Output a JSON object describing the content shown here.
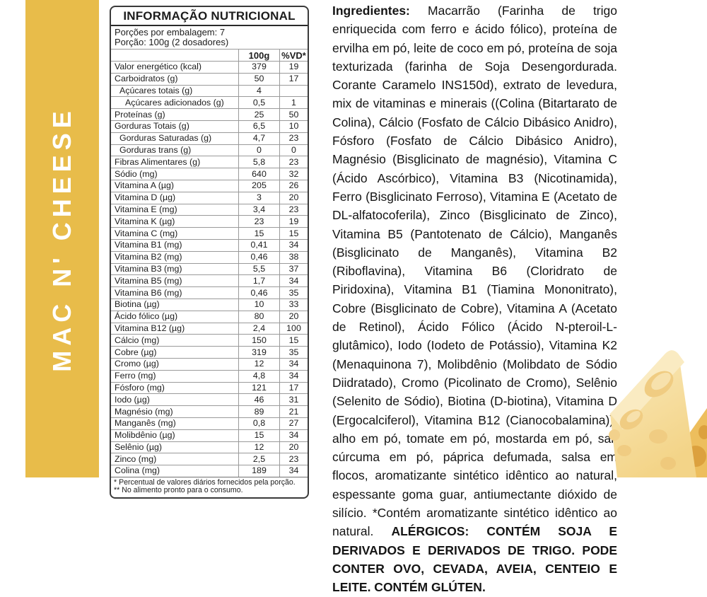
{
  "brand": {
    "title": "MAC N' CHEESE",
    "band_color": "#E8BC4A",
    "text_color": "#FFFFFF"
  },
  "nutrition_table": {
    "title": "INFORMAÇÃO NUTRICIONAL",
    "servings_per_package": "Porções por embalagem: 7",
    "serving_size": "Porção: 100g (2 dosadores)",
    "col_headers": [
      "100g",
      "%VD*"
    ],
    "rows": [
      {
        "label": "Valor energético (kcal)",
        "indent": 0,
        "per100g": "379",
        "vd": "19"
      },
      {
        "label": "Carboidratos (g)",
        "indent": 0,
        "per100g": "50",
        "vd": "17"
      },
      {
        "label": "Açúcares totais (g)",
        "indent": 1,
        "per100g": "4",
        "vd": ""
      },
      {
        "label": "Açúcares adicionados (g)",
        "indent": 2,
        "per100g": "0,5",
        "vd": "1"
      },
      {
        "label": "Proteínas (g)",
        "indent": 0,
        "per100g": "25",
        "vd": "50"
      },
      {
        "label": "Gorduras Totais (g)",
        "indent": 0,
        "per100g": "6,5",
        "vd": "10"
      },
      {
        "label": "Gorduras Saturadas (g)",
        "indent": 1,
        "per100g": "4,7",
        "vd": "23"
      },
      {
        "label": "Gorduras trans (g)",
        "indent": 1,
        "per100g": "0",
        "vd": "0"
      },
      {
        "label": "Fibras Alimentares (g)",
        "indent": 0,
        "per100g": "5,8",
        "vd": "23"
      },
      {
        "label": "Sódio (mg)",
        "indent": 0,
        "per100g": "640",
        "vd": "32"
      },
      {
        "label": "Vitamina A (µg)",
        "indent": 0,
        "per100g": "205",
        "vd": "26"
      },
      {
        "label": "Vitamina D (µg)",
        "indent": 0,
        "per100g": "3",
        "vd": "20"
      },
      {
        "label": "Vitamina E (mg)",
        "indent": 0,
        "per100g": "3,4",
        "vd": "23"
      },
      {
        "label": "Vitamina K (µg)",
        "indent": 0,
        "per100g": "23",
        "vd": "19"
      },
      {
        "label": "Vitamina C (mg)",
        "indent": 0,
        "per100g": "15",
        "vd": "15"
      },
      {
        "label": "Vitamina B1 (mg)",
        "indent": 0,
        "per100g": "0,41",
        "vd": "34"
      },
      {
        "label": "Vitamina B2 (mg)",
        "indent": 0,
        "per100g": "0,46",
        "vd": "38"
      },
      {
        "label": "Vitamina B3 (mg)",
        "indent": 0,
        "per100g": "5,5",
        "vd": "37"
      },
      {
        "label": "Vitamina B5 (mg)",
        "indent": 0,
        "per100g": "1,7",
        "vd": "34"
      },
      {
        "label": "Vitamina B6 (mg)",
        "indent": 0,
        "per100g": "0,46",
        "vd": "35"
      },
      {
        "label": "Biotina (µg)",
        "indent": 0,
        "per100g": "10",
        "vd": "33"
      },
      {
        "label": "Ácido fólico (µg)",
        "indent": 0,
        "per100g": "80",
        "vd": "20"
      },
      {
        "label": "Vitamina B12 (µg)",
        "indent": 0,
        "per100g": "2,4",
        "vd": "100"
      },
      {
        "label": "Cálcio (mg)",
        "indent": 0,
        "per100g": "150",
        "vd": "15"
      },
      {
        "label": "Cobre (µg)",
        "indent": 0,
        "per100g": "319",
        "vd": "35"
      },
      {
        "label": "Cromo (µg)",
        "indent": 0,
        "per100g": "12",
        "vd": "34"
      },
      {
        "label": "Ferro (mg)",
        "indent": 0,
        "per100g": "4,8",
        "vd": "34"
      },
      {
        "label": "Fósforo (mg)",
        "indent": 0,
        "per100g": "121",
        "vd": "17"
      },
      {
        "label": "Iodo (µg)",
        "indent": 0,
        "per100g": "46",
        "vd": "31"
      },
      {
        "label": "Magnésio (mg)",
        "indent": 0,
        "per100g": "89",
        "vd": "21"
      },
      {
        "label": "Manganês (mg)",
        "indent": 0,
        "per100g": "0,8",
        "vd": "27"
      },
      {
        "label": "Molibdênio (µg)",
        "indent": 0,
        "per100g": "15",
        "vd": "34"
      },
      {
        "label": "Selênio (µg)",
        "indent": 0,
        "per100g": "12",
        "vd": "20"
      },
      {
        "label": "Zinco (mg)",
        "indent": 0,
        "per100g": "2,5",
        "vd": "23"
      },
      {
        "label": "Colina (mg)",
        "indent": 0,
        "per100g": "189",
        "vd": "34"
      }
    ],
    "footnotes": [
      "* Percentual de valores diários fornecidos pela porção.",
      "** No alimento pronto para o consumo."
    ]
  },
  "ingredients": {
    "lead": "Ingredientes:",
    "body": " Macarrão (Farinha de trigo enriquecida com ferro e ácido fólico), proteína de ervilha em pó, leite de coco em pó, proteína de soja texturizada (farinha de Soja Desengordurada. Corante Caramelo INS150d), extrato de levedura, mix de vitaminas e minerais ((Colina (Bitartarato de Colina), Cálcio (Fosfato de Cálcio Dibásico Anidro), Fósforo (Fosfato de Cálcio Dibásico Anidro), Magnésio (Bisglicinato de magnésio), Vitamina C (Ácido Ascórbico), Vitamina B3 (Nicotinamida), Ferro (Bisglicinato Ferroso), Vitamina E (Acetato de DL-alfatocoferila), Zinco (Bisglicinato de Zinco), Vitamina B5 (Pantotenato de Cálcio), Manganês (Bisglicinato de Manganês), Vitamina B2 (Riboflavina), Vitamina B6 (Cloridrato de Piridoxina), Vitamina B1 (Tiamina Mononitrato), Cobre (Bisglicinato de Cobre), Vitamina A (Acetato de Retinol), Ácido Fólico (Ácido N-pteroil-L-glutâmico), Iodo (Iodeto de Potássio), Vitamina K2 (Menaquinona 7), Molibdênio (Molibdato de Sódio Diidratado), Cromo (Picolinato de Cromo), Selênio (Selenito de Sódio), Biotina (D-biotina), Vitamina D (Ergocalciferol), Vitamina B12 (Cianocobalamina)), alho em pó, tomate em pó, mostarda em pó, sal, cúrcuma em pó, páprica defumada, salsa em flocos, aromatizante sintético idêntico ao natural, espessante goma guar, antiumectante dióxido de silício. *Contém aromatizante sintético idêntico ao natural. ",
    "allergens": "ALÉRGICOS: CONTÉM SOJA E DERIVADOS E DERIVADOS DE TRIGO. PODE CONTER OVO, CEVADA, AVEIA, CENTEIO E LEITE. CONTÉM GLÚTEN."
  },
  "cheese_image": {
    "description": "cheese-wedges-photo",
    "main_color": "#F6DC9C",
    "highlight_color": "#FAEBC2",
    "hole_color": "#F0CC82",
    "back_wedge_color": "#EDBE5D",
    "back_hole_color": "#DCA13E"
  }
}
